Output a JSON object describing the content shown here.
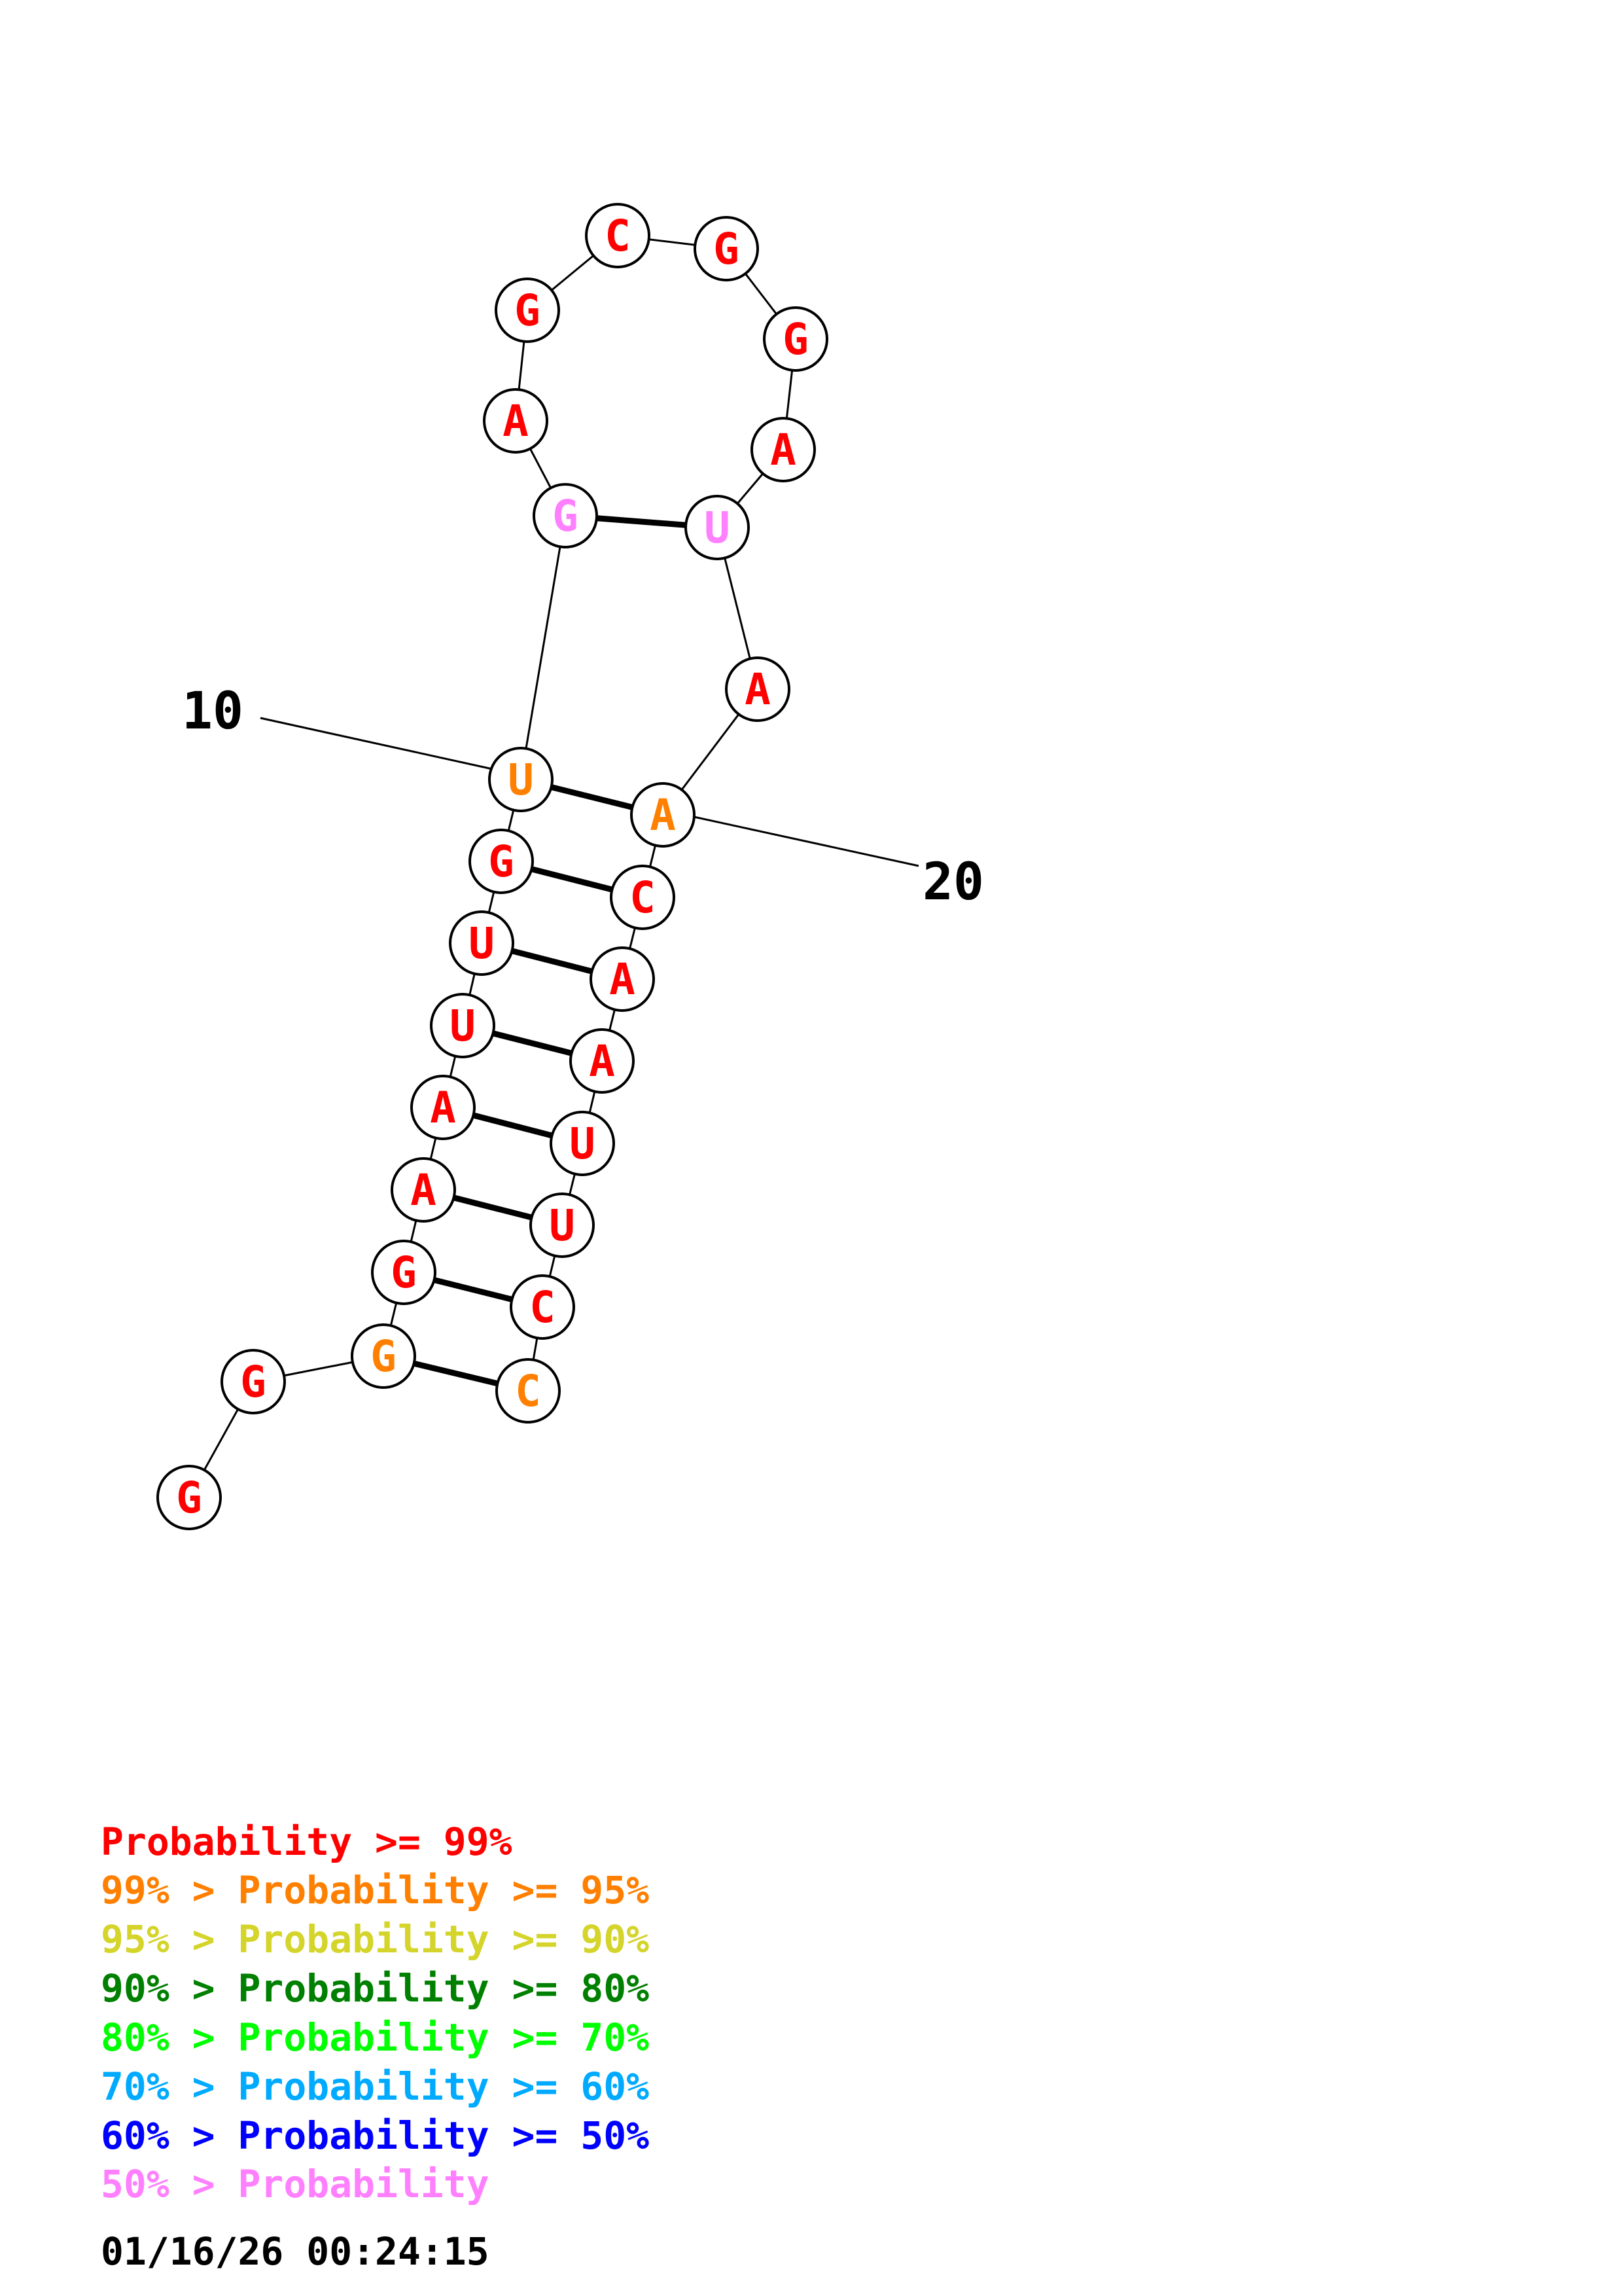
{
  "diagram": {
    "position_labels": [
      "10",
      "20"
    ],
    "nucleotides": [
      {
        "letter": "G",
        "class": 0
      },
      {
        "letter": "G",
        "class": 0
      },
      {
        "letter": "G",
        "class": 1
      },
      {
        "letter": "G",
        "class": 0
      },
      {
        "letter": "A",
        "class": 0
      },
      {
        "letter": "A",
        "class": 0
      },
      {
        "letter": "U",
        "class": 0
      },
      {
        "letter": "U",
        "class": 0
      },
      {
        "letter": "G",
        "class": 0
      },
      {
        "letter": "U",
        "class": 1
      },
      {
        "letter": "G",
        "class": 7
      },
      {
        "letter": "A",
        "class": 0
      },
      {
        "letter": "G",
        "class": 0
      },
      {
        "letter": "C",
        "class": 0
      },
      {
        "letter": "G",
        "class": 0
      },
      {
        "letter": "G",
        "class": 0
      },
      {
        "letter": "A",
        "class": 0
      },
      {
        "letter": "U",
        "class": 7
      },
      {
        "letter": "A",
        "class": 0
      },
      {
        "letter": "A",
        "class": 1
      },
      {
        "letter": "C",
        "class": 0
      },
      {
        "letter": "A",
        "class": 0
      },
      {
        "letter": "A",
        "class": 0
      },
      {
        "letter": "U",
        "class": 0
      },
      {
        "letter": "U",
        "class": 0
      },
      {
        "letter": "C",
        "class": 0
      },
      {
        "letter": "C",
        "class": 1
      }
    ],
    "pairs": [
      [
        3,
        27
      ],
      [
        4,
        26
      ],
      [
        5,
        25
      ],
      [
        6,
        24
      ],
      [
        7,
        23
      ],
      [
        8,
        22
      ],
      [
        9,
        21
      ],
      [
        10,
        20
      ],
      [
        11,
        18
      ]
    ]
  },
  "legend": {
    "lines": [
      {
        "prefix": "",
        "text": "Probability >= 99%",
        "color": "#ff0000"
      },
      {
        "prefix": "99% > ",
        "text": "Probability >= 95%",
        "color": "#ff8000"
      },
      {
        "prefix": "95% > ",
        "text": "Probability >= 90%",
        "color": "#d4d42b"
      },
      {
        "prefix": "90% > ",
        "text": "Probability >= 80%",
        "color": "#008000"
      },
      {
        "prefix": "80% > ",
        "text": "Probability >= 70%",
        "color": "#00ff00"
      },
      {
        "prefix": "70% > ",
        "text": "Probability >= 60%",
        "color": "#00aaff"
      },
      {
        "prefix": "60% > ",
        "text": "Probability >= 50%",
        "color": "#0000ff"
      },
      {
        "prefix": "50% > ",
        "text": "Probability",
        "color": "#ff80ff"
      }
    ],
    "timestamp": "01/16/26 00:24:15"
  }
}
